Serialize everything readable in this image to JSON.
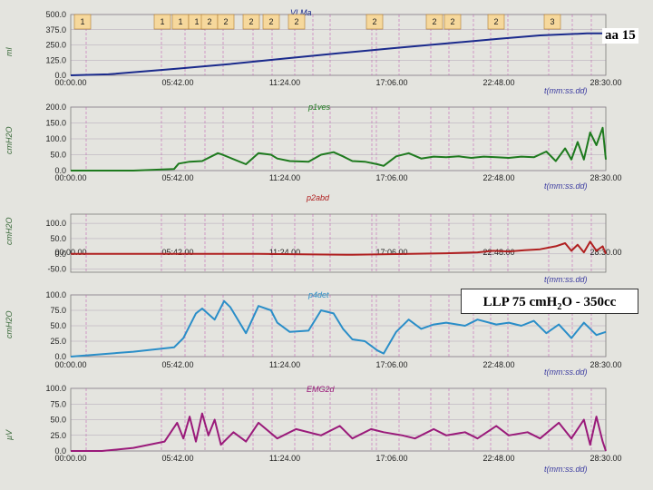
{
  "title_note": "aa 15",
  "annotation": "LLP 75 cmH₂O - 350cc",
  "annotation_parts": {
    "pre": "LLP 75 cmH",
    "sub": "2",
    "post": "O - 350cc"
  },
  "colors": {
    "background": "#e4e4df",
    "grid": "#9c8aa5",
    "marker": "#c05ab0",
    "event_box": "#f6d89c"
  },
  "x_ticks": [
    "00:00.00",
    "05:42.00",
    "11:24.00",
    "17:06.00",
    "22:48.00",
    "28:30.00"
  ],
  "x_axis_label": "t(mm:ss.dd)",
  "x_range_seconds": [
    0,
    1710
  ],
  "event_labels": [
    "1",
    "1",
    "1",
    "1",
    "2",
    "2",
    "2",
    "2",
    "2",
    "2",
    "2",
    "2",
    "2",
    "3"
  ],
  "chart_data": [
    {
      "type": "line",
      "channel": "VLMa",
      "ylabel": "ml",
      "color": "#1a2a8c",
      "yticks": [
        "500.0",
        "375.0",
        "250.0",
        "125.0",
        "0.0"
      ],
      "ylim": [
        0,
        500
      ],
      "x": [
        0,
        120,
        342,
        500,
        684,
        850,
        1026,
        1200,
        1368,
        1500,
        1650,
        1710
      ],
      "values": [
        0,
        8,
        55,
        90,
        138,
        180,
        222,
        262,
        300,
        328,
        345,
        345
      ]
    },
    {
      "type": "line",
      "channel": "p1ves",
      "ylabel": "cmH2O",
      "color": "#1e7a1e",
      "yticks": [
        "200.0",
        "150.0",
        "100.0",
        "50.0",
        "0.0"
      ],
      "ylim": [
        0,
        200
      ],
      "x": [
        0,
        200,
        330,
        345,
        380,
        420,
        470,
        480,
        510,
        560,
        600,
        640,
        660,
        700,
        760,
        800,
        840,
        870,
        900,
        940,
        980,
        1000,
        1040,
        1080,
        1120,
        1160,
        1200,
        1240,
        1280,
        1320,
        1360,
        1400,
        1440,
        1480,
        1520,
        1550,
        1580,
        1600,
        1620,
        1640,
        1660,
        1680,
        1700,
        1710
      ],
      "values": [
        0,
        0,
        5,
        22,
        28,
        30,
        55,
        52,
        40,
        20,
        55,
        50,
        38,
        30,
        28,
        50,
        58,
        45,
        30,
        28,
        20,
        15,
        45,
        55,
        38,
        44,
        42,
        45,
        40,
        44,
        42,
        40,
        44,
        42,
        60,
        30,
        70,
        35,
        90,
        35,
        120,
        80,
        135,
        35
      ]
    },
    {
      "type": "line",
      "channel": "p2abd",
      "ylabel": "cmH2O",
      "color": "#b02020",
      "yticks": [
        "100.0",
        "50.0",
        "0.0",
        "-50.0"
      ],
      "ylim": [
        -60,
        130
      ],
      "x": [
        0,
        300,
        600,
        900,
        1200,
        1300,
        1350,
        1400,
        1450,
        1500,
        1550,
        1580,
        1600,
        1620,
        1640,
        1660,
        1680,
        1700,
        1710
      ],
      "values": [
        0,
        0,
        0,
        -3,
        2,
        5,
        10,
        8,
        12,
        15,
        25,
        35,
        10,
        30,
        5,
        40,
        10,
        25,
        0
      ]
    },
    {
      "type": "line",
      "channel": "p4det",
      "ylabel": "cmH2O",
      "color": "#2a8ec8",
      "yticks": [
        "100.0",
        "75.0",
        "50.0",
        "25.0",
        "0.0"
      ],
      "ylim": [
        0,
        100
      ],
      "x": [
        0,
        200,
        330,
        360,
        400,
        420,
        460,
        490,
        510,
        560,
        600,
        640,
        660,
        700,
        760,
        800,
        840,
        870,
        900,
        940,
        980,
        1000,
        1040,
        1080,
        1120,
        1160,
        1200,
        1260,
        1300,
        1360,
        1400,
        1440,
        1480,
        1520,
        1560,
        1600,
        1640,
        1680,
        1710
      ],
      "values": [
        0,
        8,
        15,
        30,
        70,
        78,
        60,
        90,
        80,
        38,
        82,
        75,
        55,
        40,
        42,
        75,
        70,
        45,
        28,
        25,
        10,
        5,
        40,
        60,
        45,
        52,
        55,
        50,
        60,
        52,
        55,
        50,
        58,
        38,
        52,
        30,
        55,
        35,
        40
      ]
    },
    {
      "type": "line",
      "channel": "EMG2d",
      "ylabel": "µV",
      "color": "#9a1a7a",
      "yticks": [
        "100.0",
        "75.0",
        "50.0",
        "25.0",
        "0.0"
      ],
      "ylim": [
        0,
        100
      ],
      "x": [
        0,
        100,
        200,
        300,
        340,
        360,
        380,
        400,
        420,
        440,
        460,
        480,
        520,
        560,
        600,
        660,
        720,
        800,
        860,
        900,
        960,
        1000,
        1060,
        1100,
        1160,
        1200,
        1260,
        1300,
        1360,
        1400,
        1460,
        1500,
        1560,
        1600,
        1640,
        1660,
        1680,
        1700,
        1710
      ],
      "values": [
        0,
        0,
        5,
        15,
        45,
        20,
        55,
        15,
        60,
        25,
        50,
        10,
        30,
        15,
        45,
        20,
        35,
        25,
        40,
        20,
        35,
        30,
        25,
        20,
        35,
        25,
        30,
        20,
        40,
        25,
        30,
        20,
        45,
        20,
        50,
        10,
        55,
        15,
        0
      ]
    }
  ]
}
